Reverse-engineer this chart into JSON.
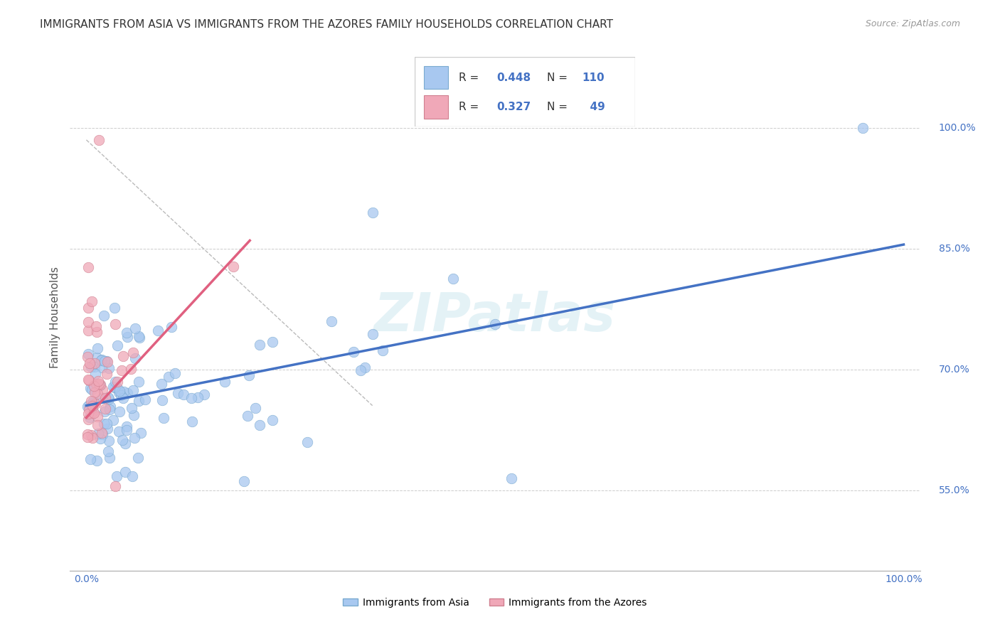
{
  "title": "IMMIGRANTS FROM ASIA VS IMMIGRANTS FROM THE AZORES FAMILY HOUSEHOLDS CORRELATION CHART",
  "source": "Source: ZipAtlas.com",
  "ylabel": "Family Households",
  "ytick_labels": [
    "55.0%",
    "70.0%",
    "85.0%",
    "100.0%"
  ],
  "ytick_values": [
    0.55,
    0.7,
    0.85,
    1.0
  ],
  "watermark": "ZIPatlas",
  "background_color": "#ffffff",
  "grid_color": "#cccccc",
  "blue_line_color": "#4472c4",
  "pink_line_color": "#e06080",
  "scatter_blue": "#a8c8f0",
  "scatter_pink": "#f0a8b8",
  "scatter_edge_blue": "#7aaad0",
  "scatter_edge_pink": "#d08090",
  "R_blue": 0.448,
  "N_blue": 110,
  "R_pink": 0.327,
  "N_pink": 49,
  "blue_line_x": [
    0.0,
    1.0
  ],
  "blue_line_y": [
    0.655,
    0.855
  ],
  "pink_line_x": [
    0.0,
    0.2
  ],
  "pink_line_y": [
    0.64,
    0.86
  ],
  "diag_line_x": [
    0.0,
    0.35
  ],
  "diag_line_y": [
    0.985,
    0.655
  ],
  "xlim": [
    -0.02,
    1.02
  ],
  "ylim": [
    0.45,
    1.08
  ]
}
